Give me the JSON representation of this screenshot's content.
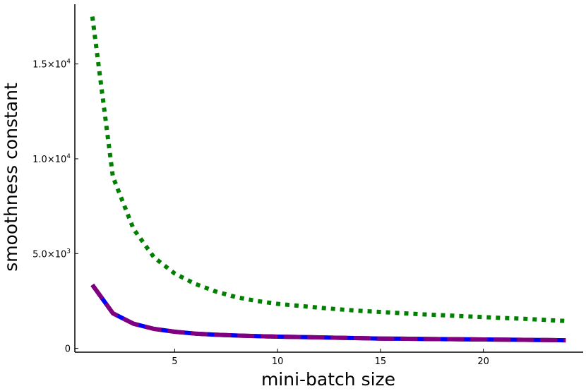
{
  "chart_data": {
    "type": "line",
    "title": "",
    "xlabel": "mini-batch size",
    "ylabel": "smoothness constant",
    "xlim": [
      0.15,
      24.85
    ],
    "ylim": [
      -200,
      18150
    ],
    "grid": false,
    "legend": "none",
    "x_ticks": [
      {
        "value": 5,
        "label": "5"
      },
      {
        "value": 10,
        "label": "10"
      },
      {
        "value": 15,
        "label": "15"
      },
      {
        "value": 20,
        "label": "20"
      }
    ],
    "y_ticks": [
      {
        "value": 0,
        "mantissa": "0",
        "exponent": ""
      },
      {
        "value": 5000,
        "mantissa": "5.0×10",
        "exponent": "3"
      },
      {
        "value": 10000,
        "mantissa": "1.0×10",
        "exponent": "4"
      },
      {
        "value": 15000,
        "mantissa": "1.5×10",
        "exponent": "4"
      }
    ],
    "x": [
      1,
      2,
      3,
      4,
      5,
      6,
      7,
      8,
      9,
      10,
      11,
      12,
      13,
      14,
      15,
      16,
      17,
      18,
      19,
      20,
      21,
      22,
      23,
      24
    ],
    "series": [
      {
        "color": "#008000",
        "style": "dotted",
        "values": [
          17500,
          9050,
          6300,
          4800,
          3950,
          3400,
          3000,
          2700,
          2500,
          2350,
          2250,
          2150,
          2060,
          1980,
          1920,
          1860,
          1800,
          1750,
          1700,
          1650,
          1600,
          1560,
          1500,
          1450
        ]
      },
      {
        "color": "#FFA500",
        "style": "solid",
        "values": [
          3350,
          1850,
          1300,
          1030,
          880,
          780,
          720,
          680,
          650,
          620,
          600,
          580,
          560,
          540,
          520,
          510,
          500,
          490,
          480,
          470,
          460,
          450,
          440,
          430
        ]
      },
      {
        "color": "#0000FF",
        "style": "solid",
        "values": [
          3350,
          1850,
          1300,
          1030,
          880,
          780,
          720,
          680,
          650,
          620,
          600,
          580,
          560,
          540,
          520,
          510,
          500,
          490,
          480,
          470,
          460,
          450,
          440,
          430
        ]
      },
      {
        "color": "#800080",
        "style": "dashed",
        "values": [
          3350,
          1850,
          1300,
          1030,
          880,
          780,
          720,
          680,
          650,
          620,
          600,
          580,
          560,
          540,
          520,
          510,
          500,
          490,
          480,
          470,
          460,
          450,
          440,
          430
        ]
      }
    ]
  }
}
